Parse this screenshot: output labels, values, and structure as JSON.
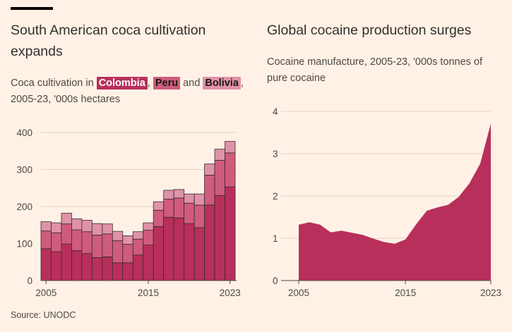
{
  "header": {
    "bar_color": "#000000"
  },
  "left": {
    "title": "South American coca cultivation expands",
    "subtitle_pre": "Coca cultivation in",
    "subtitle_sep1": ",",
    "subtitle_and": "and",
    "subtitle_post": ",",
    "subtitle_line2": "2005-23, '000s hectares"
  },
  "right": {
    "title": "Global cocaine production surges",
    "subtitle_line1": "Cocaine manufacture, 2005-23, '000s tonnes of",
    "subtitle_line2": "pure cocaine"
  },
  "source": "Source: UNODC",
  "chart_data": [
    {
      "type": "bar",
      "stacked": true,
      "title": "South American coca cultivation expands",
      "subtitle": "Coca cultivation in Colombia, Peru and Bolivia, 2005-23, '000s hectares",
      "x": [
        2005,
        2006,
        2007,
        2008,
        2009,
        2010,
        2011,
        2012,
        2013,
        2014,
        2015,
        2016,
        2017,
        2018,
        2019,
        2020,
        2021,
        2022,
        2023
      ],
      "x_tick_labels": [
        "2005",
        "2015",
        "2023"
      ],
      "series": [
        {
          "name": "Colombia",
          "color": "#b82f5c",
          "values": [
            86,
            78,
            99,
            81,
            73,
            62,
            64,
            48,
            48,
            69,
            96,
            146,
            171,
            169,
            154,
            143,
            204,
            230,
            253
          ]
        },
        {
          "name": "Peru",
          "color": "#cf5b7d",
          "values": [
            48,
            51,
            54,
            56,
            59,
            61,
            62,
            60,
            50,
            43,
            40,
            44,
            49,
            54,
            55,
            61,
            81,
            95,
            92
          ]
        },
        {
          "name": "Bolivia",
          "color": "#df92a8",
          "values": [
            25,
            27,
            29,
            30,
            31,
            31,
            27,
            25,
            23,
            20,
            20,
            23,
            24,
            23,
            25,
            30,
            30,
            30,
            31
          ]
        }
      ],
      "ylim": [
        0,
        400
      ],
      "y_ticks": [
        0,
        100,
        200,
        300,
        400
      ],
      "grid": true
    },
    {
      "type": "area",
      "title": "Global cocaine production surges",
      "subtitle": "Cocaine manufacture, 2005-23, '000s tonnes of pure cocaine",
      "color": "#b82f5c",
      "x": [
        2005,
        2006,
        2007,
        2008,
        2009,
        2010,
        2011,
        2012,
        2013,
        2014,
        2015,
        2016,
        2017,
        2018,
        2019,
        2020,
        2021,
        2022,
        2023
      ],
      "x_tick_labels": [
        "2005",
        "2015",
        "2023"
      ],
      "values": [
        1.32,
        1.38,
        1.32,
        1.14,
        1.18,
        1.13,
        1.08,
        0.99,
        0.91,
        0.87,
        0.97,
        1.33,
        1.65,
        1.73,
        1.79,
        1.98,
        2.3,
        2.76,
        3.71
      ],
      "ylim": [
        0,
        4
      ],
      "y_ticks": [
        0,
        1,
        2,
        3,
        4
      ],
      "grid": true
    }
  ]
}
